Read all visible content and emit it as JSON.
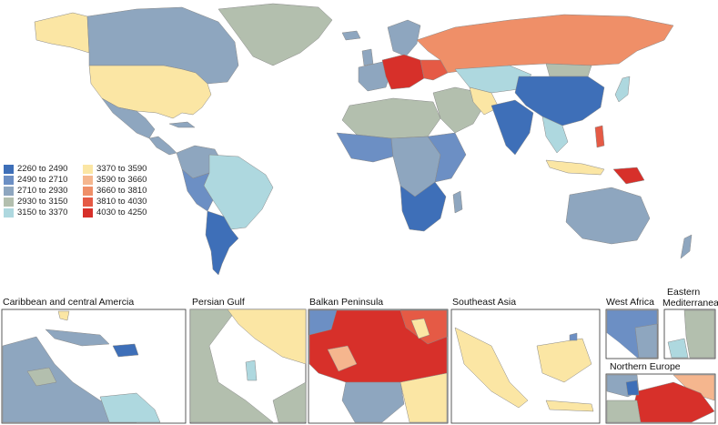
{
  "legend": {
    "items": [
      {
        "label": "2260 to 2490",
        "color": "#3e6fb8"
      },
      {
        "label": "2490 to 2710",
        "color": "#6c8fc4"
      },
      {
        "label": "2710 to 2930",
        "color": "#8ea6bf"
      },
      {
        "label": "2930 to 3150",
        "color": "#b3bfae"
      },
      {
        "label": "3150 to 3370",
        "color": "#aed8df"
      },
      {
        "label": "3370 to 3590",
        "color": "#fbe6a4"
      },
      {
        "label": "3590 to 3660",
        "color": "#f5b68e"
      },
      {
        "label": "3660 to 3810",
        "color": "#ef8f68"
      },
      {
        "label": "3810 to 4030",
        "color": "#e55a45"
      },
      {
        "label": "4030 to 4250",
        "color": "#d7302a"
      }
    ]
  },
  "insets": {
    "caribbean": "Caribbean and central Amercia",
    "persian_gulf": "Persian Gulf",
    "balkan": "Balkan Peninsula",
    "southeast_asia": "Southeast Asia",
    "west_africa": "West Africa",
    "eastern_med_line1": "Eastern",
    "eastern_med_line2": "Mediterranean",
    "northern_europe": "Northern Europe"
  }
}
